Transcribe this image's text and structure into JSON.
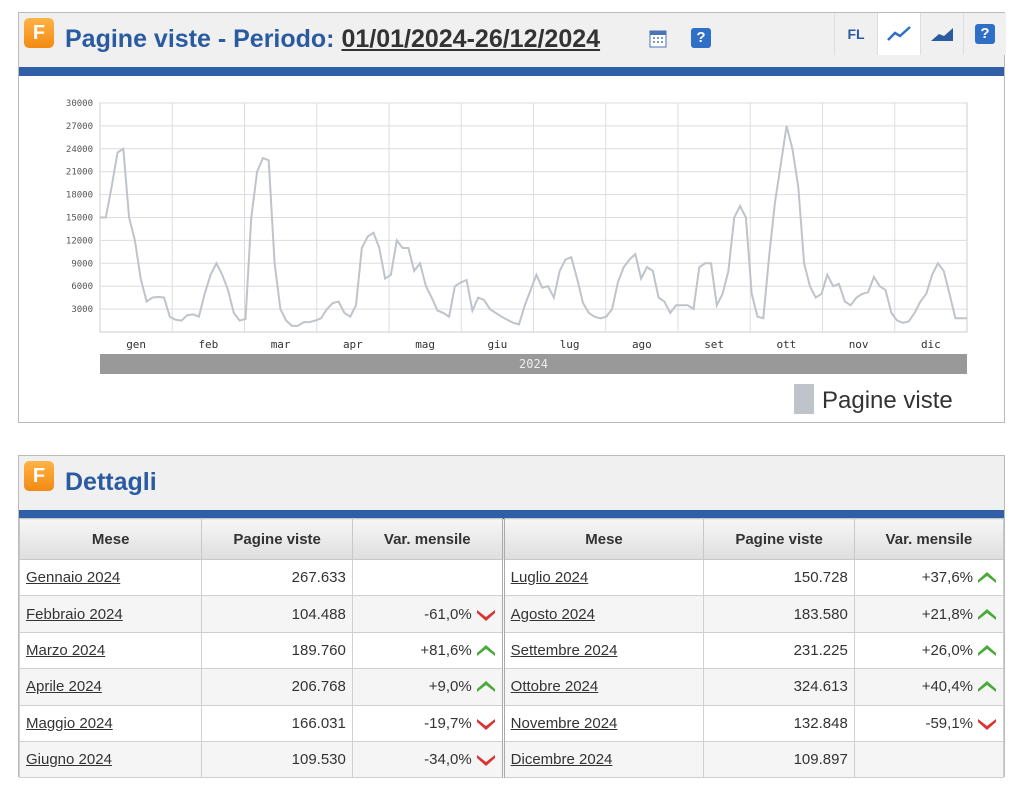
{
  "header": {
    "logo": "F",
    "title": "Pagine viste - Periodo:",
    "period": "01/01/2024-26/12/2024",
    "help": "?",
    "buttons": [
      "FL"
    ]
  },
  "chart_data": {
    "type": "line",
    "x_labels": [
      "gen",
      "feb",
      "mar",
      "apr",
      "mag",
      "giu",
      "lug",
      "ago",
      "set",
      "ott",
      "nov",
      "dic"
    ],
    "x_group_label": "2024",
    "series": [
      {
        "name": "Pagine viste",
        "color": "#bfc4ca",
        "values": [
          15000,
          15000,
          19000,
          23500,
          24000,
          15000,
          12000,
          7000,
          4000,
          4500,
          4600,
          4500,
          2000,
          1600,
          1500,
          2200,
          2300,
          2000,
          5000,
          7500,
          9000,
          7500,
          5500,
          2500,
          1500,
          1700,
          15000,
          21000,
          22800,
          22500,
          9000,
          3000,
          1500,
          800,
          800,
          1300,
          1300,
          1500,
          1800,
          3000,
          3800,
          4000,
          2500,
          2000,
          3500,
          11000,
          12500,
          13000,
          11000,
          7000,
          7500,
          12000,
          11000,
          11000,
          8000,
          9000,
          6000,
          4500,
          2800,
          2500,
          2000,
          6000,
          6500,
          6800,
          2800,
          4500,
          4200,
          3000,
          2500,
          2000,
          1600,
          1200,
          1000,
          3500,
          5500,
          7500,
          5800,
          6000,
          4500,
          8000,
          9500,
          9800,
          7000,
          3800,
          2500,
          2000,
          1800,
          2000,
          3000,
          6500,
          8500,
          9500,
          10200,
          7000,
          8500,
          8000,
          4500,
          4000,
          2500,
          3500,
          3500,
          3500,
          3000,
          8500,
          9000,
          9000,
          3500,
          5000,
          8000,
          15000,
          16500,
          15000,
          5000,
          2000,
          1800,
          10000,
          17000,
          22000,
          27000,
          24000,
          19000,
          9000,
          6000,
          4500,
          5000,
          7500,
          6000,
          6300,
          4000,
          3500,
          4500,
          5000,
          5200,
          7200,
          6000,
          5500,
          2500,
          1500,
          1200,
          1400,
          2500,
          4000,
          5000,
          7500,
          9000,
          8000,
          5000,
          1800,
          1800,
          1800
        ]
      }
    ],
    "ylim": [
      0,
      30000
    ],
    "yticks": [
      3000,
      6000,
      9000,
      12000,
      15000,
      18000,
      21000,
      24000,
      27000,
      30000
    ],
    "grid": true
  },
  "details": {
    "logo": "F",
    "title": "Dettagli",
    "table": {
      "headers": [
        "Mese",
        "Pagine viste",
        "Var. mensile",
        "Mese",
        "Pagine viste",
        "Var. mensile"
      ],
      "rows": [
        [
          "Gennaio 2024",
          "267.633",
          "",
          "Luglio 2024",
          "150.728",
          "+37,6%"
        ],
        [
          "Febbraio 2024",
          "104.488",
          "-61,0%",
          "Agosto 2024",
          "183.580",
          "+21,8%"
        ],
        [
          "Marzo 2024",
          "189.760",
          "+81,6%",
          "Settembre 2024",
          "231.225",
          "+26,0%"
        ],
        [
          "Aprile 2024",
          "206.768",
          "+9,0%",
          "Ottobre 2024",
          "324.613",
          "+40,4%"
        ],
        [
          "Maggio 2024",
          "166.031",
          "-19,7%",
          "Novembre 2024",
          "132.848",
          "-59,1%"
        ],
        [
          "Giugno 2024",
          "109.530",
          "-34,0%",
          "Dicembre 2024",
          "109.897",
          ""
        ]
      ]
    }
  }
}
